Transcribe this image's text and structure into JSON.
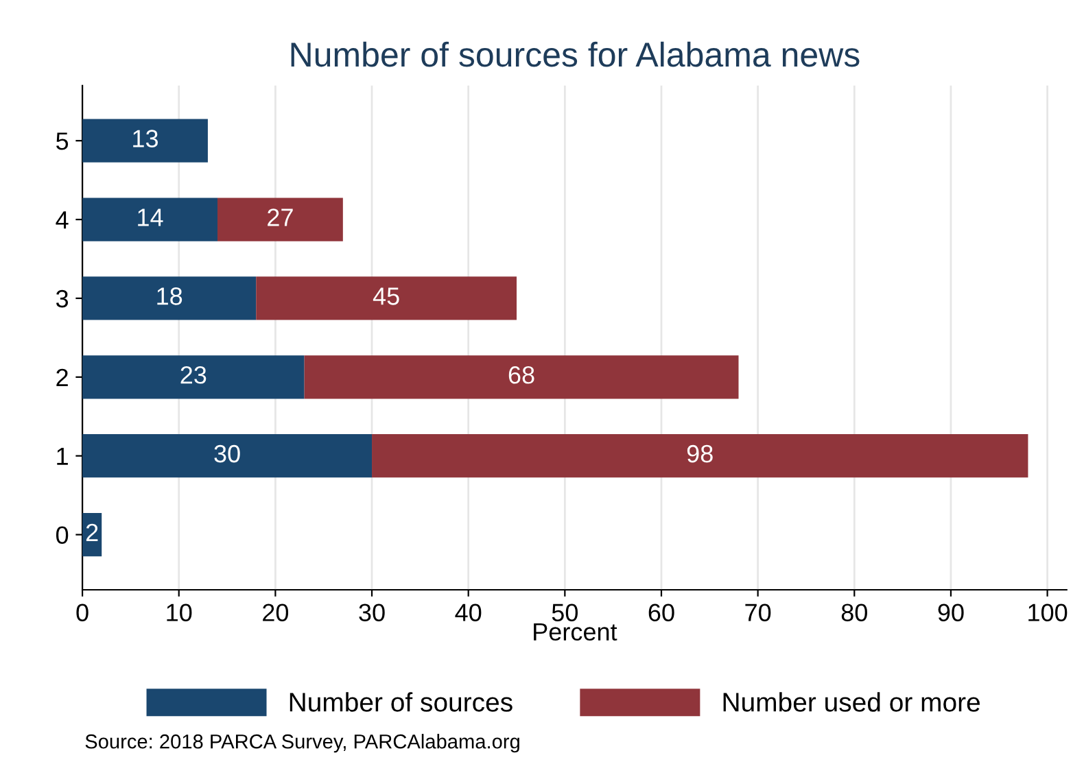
{
  "chart_data": {
    "type": "bar",
    "orientation": "horizontal",
    "stacked": true,
    "title": "Number of sources for Alabama news",
    "xlabel": "Percent",
    "categories": [
      "5",
      "4",
      "3",
      "2",
      "1",
      "0"
    ],
    "series": [
      {
        "name": "Number of sources",
        "color": "#1a476f",
        "values": [
          13,
          14,
          18,
          23,
          30,
          2
        ],
        "value_labels": [
          "13",
          "14",
          "18",
          "23",
          "30",
          "2"
        ]
      },
      {
        "name": "Number used or more",
        "color": "#90353b",
        "values": [
          null,
          13,
          27,
          45,
          68,
          null
        ]
      }
    ],
    "totals": [
      null,
      "27",
      "45",
      "68",
      "98",
      null
    ],
    "xlim": [
      0,
      102
    ],
    "xticks": [
      0,
      10,
      20,
      30,
      40,
      50,
      60,
      70,
      80,
      90,
      100
    ],
    "grid": "x",
    "legend": "bottom",
    "annotations": [
      "Source: 2018 PARCA Survey, PARCAlabama.org"
    ]
  }
}
